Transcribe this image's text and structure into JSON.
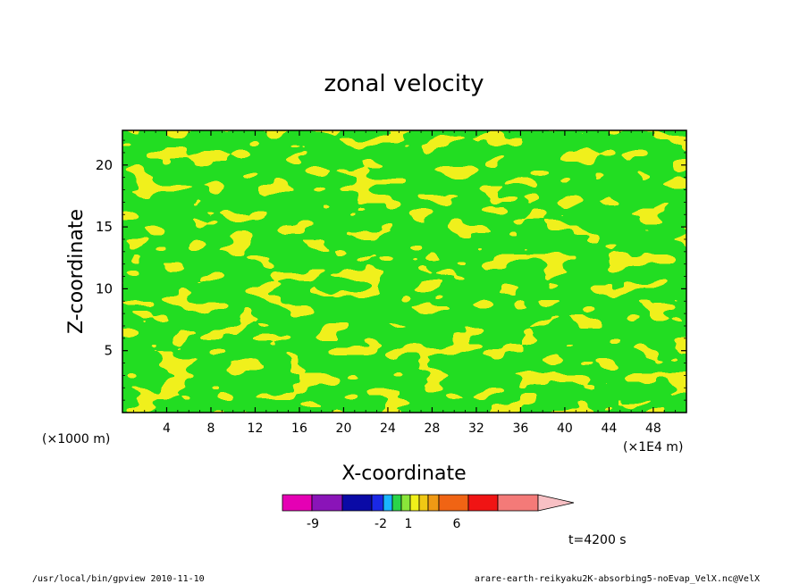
{
  "chart_data": {
    "type": "heatmap",
    "title": "zonal velocity",
    "xlabel": "X-coordinate",
    "ylabel": "Z-coordinate",
    "x_unit_left": "(×1000 m)",
    "x_unit_right": "(×1E4 m)",
    "xlim": [
      0,
      51
    ],
    "ylim": [
      0,
      22.8
    ],
    "x_ticks": [
      "4",
      "8",
      "12",
      "16",
      "20",
      "24",
      "28",
      "32",
      "36",
      "40",
      "44",
      "48"
    ],
    "x_tick_values": [
      4,
      8,
      12,
      16,
      20,
      24,
      28,
      32,
      36,
      40,
      44,
      48
    ],
    "y_ticks": [
      "5",
      "10",
      "15",
      "20"
    ],
    "y_tick_values": [
      5,
      10,
      15,
      20
    ],
    "time_label": "t=4200 s",
    "colorbar": {
      "colors": [
        "#e500b4",
        "#8a14b8",
        "#0a0aa6",
        "#1a28e6",
        "#1ab4ff",
        "#2ad44a",
        "#8ae63a",
        "#f0f01a",
        "#f0c814",
        "#f09a14",
        "#f06414",
        "#f01414",
        "#f47a78",
        "#f8c0c4"
      ],
      "tick_labels": [
        "-9",
        "-2",
        "1",
        "6"
      ]
    },
    "dominant_colors": {
      "positive_yellow": "#f0f01a",
      "near_zero_green": "#22dd22"
    },
    "footer_left": "/usr/local/bin/gpview  2010-11-10",
    "footer_right": "arare-earth-reikyaku2K-absorbing5-noEvap_VelX.nc@VelX"
  }
}
